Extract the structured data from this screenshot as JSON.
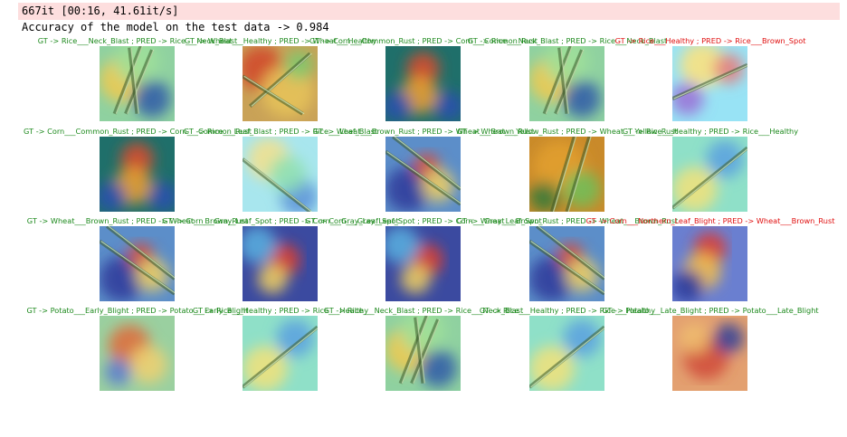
{
  "output": {
    "progress_line": "667it [00:16, 41.61it/s]",
    "accuracy_line": "Accuracy of the model on the test data -> 0.984"
  },
  "colors": {
    "correct": "#1e8a1e",
    "incorrect": "#e01010",
    "stderr_bg": "#fddede"
  },
  "grid": {
    "rows": [
      {
        "cells": [
          {
            "title": "GT -> Rice___Neck_Blast ; PRED -> Rice___Neck_Blast",
            "correct": true,
            "image": "rice-neck-blast-heatmap"
          },
          {
            "title": "GT -> Wheat___Healthy ; PRED -> Wheat___Healthy",
            "correct": true,
            "image": "wheat-healthy-heatmap"
          },
          {
            "title": "GT -> Corn___Common_Rust ; PRED -> Corn___Common_Rust",
            "correct": true,
            "image": "corn-common-rust-heatmap"
          },
          {
            "title": "GT -> Rice___Neck_Blast ; PRED -> Rice___Neck_Blast",
            "correct": true,
            "image": "rice-neck-blast-heatmap"
          },
          {
            "title": "GT -> Rice___Healthy ; PRED -> Rice___Brown_Spot",
            "correct": false,
            "image": "rice-leaf-heatmap"
          }
        ]
      },
      {
        "cells": [
          {
            "title": "GT -> Corn___Common_Rust ; PRED -> Corn___Common_Rust",
            "correct": true,
            "image": "corn-common-rust-heatmap"
          },
          {
            "title": "GT -> Rice___Leaf_Blast ; PRED -> Rice___Leaf_Blast",
            "correct": true,
            "image": "rice-leaf-blast-heatmap"
          },
          {
            "title": "GT -> Wheat___Brown_Rust ; PRED -> Wheat___Brown_Rust",
            "correct": true,
            "image": "wheat-brown-rust-heatmap"
          },
          {
            "title": "GT -> Wheat___Yellow_Rust ; PRED -> Wheat___Yellow_Rust",
            "correct": true,
            "image": "wheat-yellow-rust-heatmap"
          },
          {
            "title": "GT -> Rice___Healthy ; PRED -> Rice___Healthy",
            "correct": true,
            "image": "rice-healthy-heatmap"
          }
        ]
      },
      {
        "cells": [
          {
            "title": "GT -> Wheat___Brown_Rust ; PRED -> Wheat___Brown_Rust",
            "correct": true,
            "image": "wheat-brown-rust-heatmap"
          },
          {
            "title": "GT -> Corn___Gray_Leaf_Spot ; PRED -> Corn___Gray_Leaf_Spot",
            "correct": true,
            "image": "corn-gray-leaf-spot-heatmap"
          },
          {
            "title": "GT -> Corn___Gray_Leaf_Spot ; PRED -> Corn___Gray_Leaf_Spot",
            "correct": true,
            "image": "corn-gray-leaf-spot-heatmap"
          },
          {
            "title": "GT -> Wheat___Brown_Rust ; PRED -> Wheat___Brown_Rust",
            "correct": true,
            "image": "wheat-brown-rust-heatmap"
          },
          {
            "title": "GT -> Corn___Northern_Leaf_Blight ; PRED -> Wheat___Brown_Rust",
            "correct": false,
            "image": "corn-northern-leaf-blight-heatmap"
          }
        ]
      },
      {
        "cells": [
          {
            "title": "GT -> Potato___Early_Blight ; PRED -> Potato___Early_Blight",
            "correct": true,
            "image": "potato-early-blight-heatmap"
          },
          {
            "title": "GT -> Rice___Healthy ; PRED -> Rice___Healthy",
            "correct": true,
            "image": "rice-healthy-heatmap"
          },
          {
            "title": "GT -> Rice___Neck_Blast ; PRED -> Rice___Neck_Blast",
            "correct": true,
            "image": "rice-neck-blast-heatmap"
          },
          {
            "title": "GT -> Rice___Healthy ; PRED -> Rice___Healthy",
            "correct": true,
            "image": "rice-healthy-heatmap"
          },
          {
            "title": "GT -> Potato___Late_Blight ; PRED -> Potato___Late_Blight",
            "correct": true,
            "image": "potato-late-blight-heatmap"
          }
        ]
      }
    ]
  }
}
